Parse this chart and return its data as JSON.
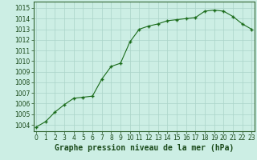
{
  "x": [
    0,
    1,
    2,
    3,
    4,
    5,
    6,
    7,
    8,
    9,
    10,
    11,
    12,
    13,
    14,
    15,
    16,
    17,
    18,
    19,
    20,
    21,
    22,
    23
  ],
  "y": [
    1003.8,
    1004.3,
    1005.2,
    1005.9,
    1006.5,
    1006.6,
    1006.7,
    1008.3,
    1009.5,
    1009.8,
    1011.8,
    1013.0,
    1013.3,
    1013.5,
    1013.8,
    1013.9,
    1014.0,
    1014.1,
    1014.7,
    1014.8,
    1014.7,
    1014.2,
    1013.5,
    1013.0
  ],
  "line_color": "#1a6b1a",
  "marker": "+",
  "bg_color": "#cceee4",
  "grid_color": "#aad4c8",
  "xlabel": "Graphe pression niveau de la mer (hPa)",
  "xlabel_fontsize": 7,
  "ylabel_ticks": [
    1004,
    1005,
    1006,
    1007,
    1008,
    1009,
    1010,
    1011,
    1012,
    1013,
    1014,
    1015
  ],
  "ylim": [
    1003.4,
    1015.6
  ],
  "xlim": [
    -0.3,
    23.3
  ],
  "xticks": [
    0,
    1,
    2,
    3,
    4,
    5,
    6,
    7,
    8,
    9,
    10,
    11,
    12,
    13,
    14,
    15,
    16,
    17,
    18,
    19,
    20,
    21,
    22,
    23
  ],
  "tick_fontsize": 5.5
}
